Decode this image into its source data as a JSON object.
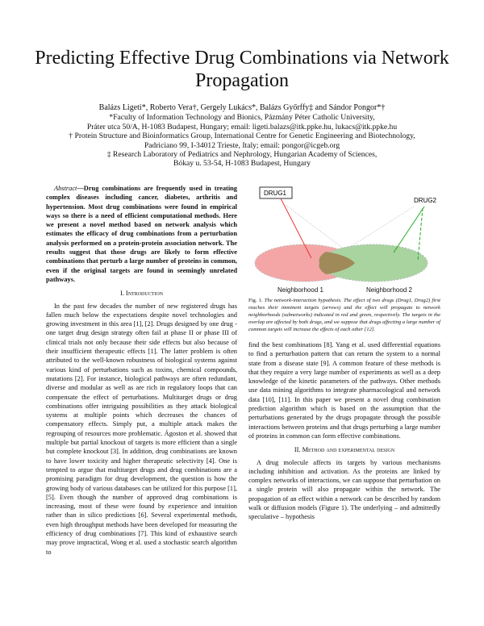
{
  "title": "Predicting Effective Drug Combinations via Network Propagation",
  "authors": {
    "names": "Balázs Ligeti*, Roberto Vera†, Gergely Lukács*, Balázs Győrffy‡ and Sándor Pongor*†",
    "aff1a": "*Faculty of Information Technology and Bionics, Pázmány Péter Catholic University,",
    "aff1b": "Práter utca 50/A, H-1083 Budapest, Hungary; email: ligeti.balazs@itk.ppke.hu, lukacs@itk.ppke.hu",
    "aff2a": "† Protein Structure and Bioinformatics Group, International Centre for Genetic Engineering and Biotechnology,",
    "aff2b": "Padriciano 99, I-34012 Trieste, Italy; email: pongor@icgeb.org",
    "aff3a": "‡ Research Laboratory of Pediatrics and Nephrology, Hungarian Academy of Sciences,",
    "aff3b": "Bókay u. 53-54, H-1083 Budapest, Hungary"
  },
  "abstract": {
    "label": "Abstract",
    "text": "—Drug combinations are frequently used in treating complex diseases including cancer, diabetes, arthritis and hypertension. Most drug combinations were found in empirical ways so there is a need of efficient computational methods. Here we present a novel method based on network analysis which estimates the efficacy of drug combinations from a perturbation analysis performed on a protein-protein association network. The results suggest that those drugs are likely to form effective combinations that perturb a large number of proteins in common, even if the original targets are found in seemingly unrelated pathways."
  },
  "sec1": "I. Introduction",
  "intro": "In the past few decades the number of new registered drugs has fallen much below the expectations despite novel technologies and growing investment in this area [1], [2]. Drugs designed by one drug - one target drug design strategy often fail at phase II or phase III of clinical trials not only because their side effects but also because of their insufficient therapeutic effects [1]. The latter problem is often attributed to the well-known robustness of biological systems against various kind of perturbations such as toxins, chemical compounds, mutations [2]. For instance, biological pathways are often redundant, diverse and modular as well as are rich in regulatory loops that can compensate the effect of perturbations. Multitarget drugs or drug combinations offer intriguing possibilities as they attack biological systems at multiple points which decreases the chances of compensatory effects. Simply put, a multiple attack makes the regrouping of resources more problematic. Ágoston et al. showed that multiple but partial knockout of targets is more efficient than a single but complete knockout [3]. In addition, drug combinations are known to have lower toxicity and higher therapeutic selectivity [4]. One is tempted to argue that multitarget drugs and drug combinations are a promising paradigm for drug development, the question is how the growing body of various databases can be utilized for this purpose [1], [5]. Even though the number of approved drug combinations is increasing, most of these were found by experience and intuition rather than in silico predictions [6]. Several experimental methods, even high throughput methods have been developed for measuring the efficiency of drug combinations [7]. This kind of exhaustive search may prove impractical, Wong et al. used a stochastic search algorithm to",
  "figure": {
    "drug1": "DRUG1",
    "drug2": "DRUG2",
    "n1": "Neighborhood 1",
    "n2": "Neighborhood 2",
    "colors": {
      "red": "#f4a6a6",
      "green": "#a9d4a0",
      "overlap": "#a08a5a"
    }
  },
  "caption": {
    "label": "Fig. 1.",
    "text": "The network-interaction hypothesis. The effect of two drugs (Drug1, Drug2) first reaches their imminent targets (arrows) and the effect will propagate to network neighborhoods (subnetworks) indicated in red and green, respectively. The targets in the overlap are affected by both drugs, and we suppose that drugs affecting a large number of common targets will increase the effects of each other [12]."
  },
  "right_text": "find the best combinations [8]. Yang et al. used differential equations to find a perturbation pattern that can return the system to a normal state from a disease state [9]. A common feature of these methods is that they require a very large number of experiments as well as a deep knowledge of the kinetic parameters of the pathways. Other methods use data mining algorithms to integrate pharmacological and network data [10], [11]. In this paper we present a novel drug combination prediction algorithm which is based on the assumption that the perturbations generated by the drugs propagate through the possible interactions between proteins and that drugs perturbing a large number of proteins in common can form effective combinations.",
  "sec2": "II. Method and experimental design",
  "method": "A drug molecule affects its targets by various mechanisms including inhibition and activation. As the proteins are linked by complex networks of interactions, we can suppose that perturbation on a single protein will also propagate within the network. The propagation of an effect within a network can be described by random walk or diffusion models (Figure 1). The underlying – and admittedly speculative – hypothesis"
}
